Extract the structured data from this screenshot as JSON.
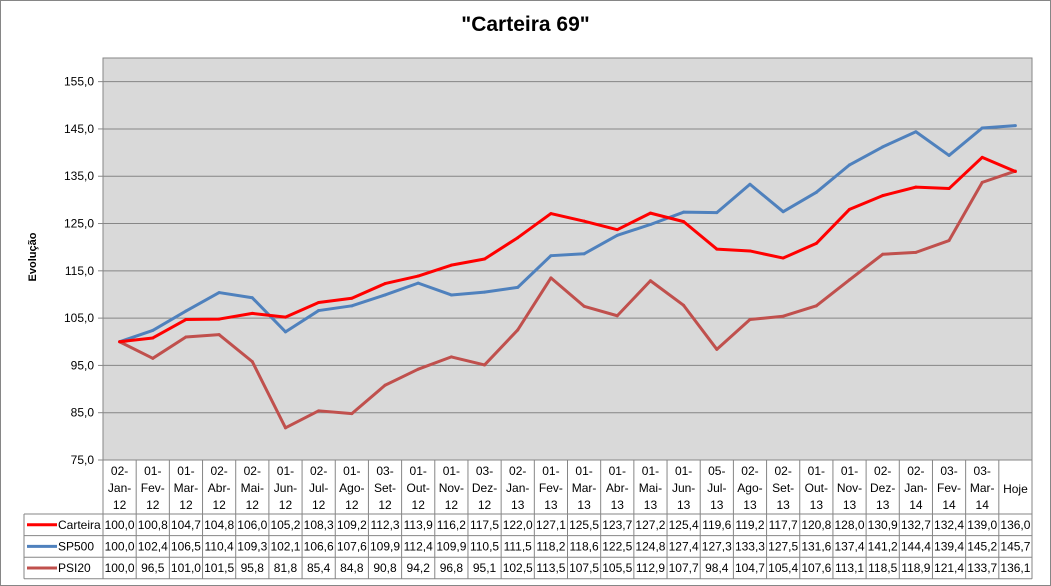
{
  "chart_data": {
    "type": "line",
    "title": "\"Carteira 69\"",
    "ylabel": "Evolução",
    "xlabel": "",
    "ylim": [
      75,
      160
    ],
    "yticks": [
      "75,0",
      "85,0",
      "95,0",
      "105,0",
      "115,0",
      "125,0",
      "135,0",
      "145,0",
      "155,0"
    ],
    "grid": true,
    "legend": "data-table",
    "plot_background": "#d9d9d9",
    "categories": [
      "02-Jan-12",
      "01-Fev-12",
      "01-Mar-12",
      "02-Abr-12",
      "02-Mai-12",
      "01-Jun-12",
      "02-Jul-12",
      "01-Ago-12",
      "03-Set-12",
      "01-Out-12",
      "01-Nov-12",
      "03-Dez-12",
      "02-Jan-13",
      "01-Fev-13",
      "01-Mar-13",
      "01-Abr-13",
      "01-Mai-13",
      "01-Jun-13",
      "05-Jul-13",
      "02-Ago-13",
      "02-Set-13",
      "01-Out-13",
      "01-Nov-13",
      "02-Dez-13",
      "02-Jan-14",
      "03-Fev-14",
      "03-Mar-14",
      "Hoje"
    ],
    "series": [
      {
        "name": "Carteira",
        "color": "#ff0000",
        "values": [
          100.0,
          100.8,
          104.7,
          104.8,
          106.0,
          105.2,
          108.3,
          109.2,
          112.3,
          113.9,
          116.2,
          117.5,
          122.0,
          127.1,
          125.5,
          123.7,
          127.2,
          125.4,
          119.6,
          119.2,
          117.7,
          120.8,
          128.0,
          130.9,
          132.7,
          132.4,
          139.0,
          136.0
        ]
      },
      {
        "name": "SP500",
        "color": "#4f81bd",
        "values": [
          100.0,
          102.4,
          106.5,
          110.4,
          109.3,
          102.1,
          106.6,
          107.6,
          109.9,
          112.4,
          109.9,
          110.5,
          111.5,
          118.2,
          118.6,
          122.5,
          124.8,
          127.4,
          127.3,
          133.3,
          127.5,
          131.6,
          137.4,
          141.2,
          144.4,
          139.4,
          145.2,
          145.7
        ]
      },
      {
        "name": "PSI20",
        "color": "#c0504d",
        "values": [
          100.0,
          96.5,
          101.0,
          101.5,
          95.8,
          81.8,
          85.4,
          84.8,
          90.8,
          94.2,
          96.8,
          95.1,
          102.5,
          113.5,
          107.5,
          105.5,
          112.9,
          107.7,
          98.4,
          104.7,
          105.4,
          107.6,
          113.1,
          118.5,
          118.9,
          121.4,
          133.7,
          136.1
        ]
      }
    ]
  }
}
